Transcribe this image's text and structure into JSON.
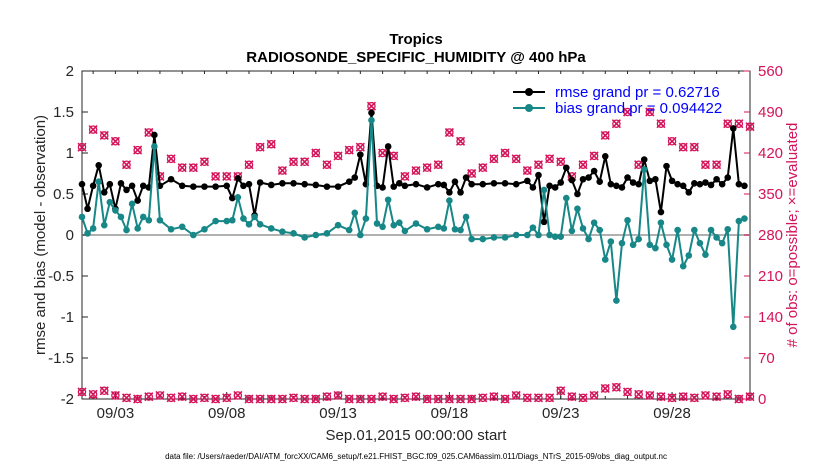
{
  "chart_data": {
    "type": "line",
    "title": "Tropics",
    "subtitle": "RADIOSONDE_SPECIFIC_HUMIDITY @ 400 hPa",
    "xlabel": "Sep.01,2015 00:00:00 start",
    "ylabel": "rmse and bias (model - observation)",
    "ylabel_right": "# of obs: o=possible; ×=evaluated",
    "footnote": "data file: /Users/raeder/DAI/ATM_forcXX/CAM6_setup/f.e21.FHIST_BGC.f09_025.CAM6assim.011/Diags_NTrS_2015-09/obs_diag_output.nc",
    "xlim": [
      1.5,
      31.5
    ],
    "ylim": [
      -2,
      2
    ],
    "ylim_right": [
      0,
      560
    ],
    "xticks": [
      3,
      8,
      13,
      18,
      23,
      28
    ],
    "xtick_labels": [
      "09/03",
      "09/08",
      "09/13",
      "09/18",
      "09/23",
      "09/28"
    ],
    "yticks": [
      -2,
      -1.5,
      -1,
      -0.5,
      0,
      0.5,
      1,
      1.5,
      2
    ],
    "ytick_labels": [
      "-2",
      "-1.5",
      "-1",
      "-0.5",
      "0",
      "0.5",
      "1",
      "1.5",
      "2"
    ],
    "yticks_right": [
      0,
      70,
      140,
      210,
      280,
      350,
      420,
      490,
      560
    ],
    "ytick_labels_right": [
      "0",
      "70",
      "140",
      "210",
      "280",
      "350",
      "420",
      "490",
      "560"
    ],
    "x": [
      1.5,
      1.75,
      2.0,
      2.25,
      2.5,
      2.75,
      3.0,
      3.25,
      3.5,
      3.75,
      4.0,
      4.25,
      4.5,
      4.75,
      5.0,
      5.5,
      6.0,
      6.5,
      7.0,
      7.5,
      8.0,
      8.25,
      8.5,
      8.75,
      9.0,
      9.25,
      9.5,
      10.0,
      10.5,
      11.0,
      11.5,
      12.0,
      12.5,
      13.0,
      13.5,
      13.75,
      14.0,
      14.25,
      14.5,
      14.75,
      15.0,
      15.25,
      15.5,
      15.75,
      16.0,
      16.5,
      17.0,
      17.5,
      17.75,
      18.0,
      18.25,
      18.5,
      18.75,
      19.0,
      19.5,
      20.0,
      20.5,
      21.0,
      21.5,
      21.75,
      22.0,
      22.25,
      22.5,
      22.75,
      23.0,
      23.25,
      23.5,
      23.75,
      24.0,
      24.25,
      24.5,
      24.75,
      25.0,
      25.25,
      25.5,
      25.75,
      26.0,
      26.25,
      26.5,
      26.75,
      27.0,
      27.25,
      27.5,
      27.75,
      28.0,
      28.25,
      28.5,
      28.75,
      29.0,
      29.25,
      29.5,
      29.75,
      30.0,
      30.25,
      30.5,
      30.75,
      31.0,
      31.25
    ],
    "series": [
      {
        "name": "rmse grand pr = 0.62716",
        "color": "#000000",
        "values": [
          0.62,
          0.32,
          0.6,
          0.85,
          0.52,
          0.62,
          0.32,
          0.63,
          0.55,
          0.6,
          0.42,
          0.6,
          0.58,
          1.22,
          0.6,
          0.68,
          0.6,
          0.59,
          0.59,
          0.59,
          0.6,
          0.45,
          0.69,
          0.6,
          0.62,
          0.24,
          0.64,
          0.61,
          0.63,
          0.63,
          0.62,
          0.61,
          0.59,
          0.59,
          0.65,
          0.7,
          0.98,
          0.62,
          1.49,
          0.6,
          0.58,
          1.08,
          0.59,
          0.63,
          0.6,
          0.62,
          0.58,
          0.62,
          0.61,
          0.52,
          0.65,
          0.52,
          0.7,
          0.62,
          0.62,
          0.63,
          0.63,
          0.62,
          0.66,
          0.58,
          0.73,
          0.16,
          0.6,
          0.58,
          0.64,
          0.82,
          0.67,
          0.5,
          0.68,
          0.7,
          0.78,
          0.65,
          0.96,
          0.62,
          0.6,
          0.58,
          0.7,
          0.64,
          0.62,
          0.92,
          0.66,
          0.68,
          0.28,
          0.84,
          0.66,
          0.62,
          0.6,
          0.52,
          0.63,
          0.62,
          0.64,
          0.61,
          0.68,
          0.62,
          0.7,
          1.3,
          0.62,
          0.6
        ]
      },
      {
        "name": "bias grand pr = 0.094422",
        "color": "#178787",
        "values": [
          0.22,
          0.02,
          0.08,
          0.65,
          0.12,
          0.4,
          0.3,
          0.22,
          0.06,
          0.38,
          0.08,
          0.22,
          0.18,
          1.08,
          0.18,
          0.07,
          0.1,
          0.0,
          0.07,
          0.17,
          0.17,
          0.18,
          0.46,
          0.2,
          0.13,
          0.22,
          0.13,
          0.08,
          0.04,
          0.02,
          -0.03,
          0.0,
          0.02,
          0.12,
          0.06,
          0.27,
          0.0,
          0.2,
          1.4,
          0.14,
          0.1,
          0.43,
          0.12,
          0.15,
          0.05,
          0.14,
          0.07,
          0.1,
          0.08,
          0.42,
          0.07,
          0.06,
          0.22,
          -0.05,
          -0.05,
          -0.03,
          -0.03,
          0.0,
          0.0,
          0.09,
          0.0,
          0.55,
          0.0,
          -0.02,
          -0.02,
          0.45,
          0.05,
          0.32,
          0.08,
          -0.05,
          0.15,
          0.06,
          -0.3,
          -0.08,
          -0.8,
          -0.1,
          0.18,
          -0.12,
          -0.05,
          0.8,
          -0.12,
          -0.16,
          0.15,
          -0.12,
          -0.3,
          0.06,
          -0.38,
          -0.25,
          0.06,
          -0.1,
          -0.24,
          0.06,
          -0.03,
          -0.1,
          0.07,
          -1.12,
          0.17,
          0.2
        ]
      }
    ],
    "obs_x": [
      1.5,
      2.0,
      2.5,
      3.0,
      3.5,
      4.0,
      4.5,
      5.0,
      5.5,
      6.0,
      6.5,
      7.0,
      7.5,
      8.0,
      8.5,
      9.0,
      9.5,
      10.0,
      10.5,
      11.0,
      11.5,
      12.0,
      12.5,
      13.0,
      13.5,
      14.0,
      14.5,
      15.0,
      15.5,
      16.0,
      16.5,
      17.0,
      17.5,
      18.0,
      18.5,
      19.0,
      19.5,
      20.0,
      20.5,
      21.0,
      21.5,
      22.0,
      22.5,
      23.0,
      23.5,
      24.0,
      24.5,
      25.0,
      25.5,
      26.0,
      26.5,
      27.0,
      27.5,
      28.0,
      28.5,
      29.0,
      29.5,
      30.0,
      30.5,
      31.0,
      31.5
    ],
    "obs_possible": [
      430,
      460,
      450,
      440,
      400,
      425,
      455,
      380,
      410,
      395,
      395,
      405,
      380,
      380,
      380,
      400,
      430,
      435,
      390,
      405,
      405,
      420,
      400,
      415,
      425,
      430,
      500,
      420,
      415,
      380,
      390,
      395,
      400,
      455,
      440,
      385,
      395,
      410,
      420,
      410,
      390,
      400,
      410,
      405,
      380,
      400,
      415,
      450,
      470,
      490,
      400,
      490,
      470,
      440,
      430,
      430,
      400,
      400,
      470,
      470,
      465
    ],
    "obs_evaluated": [
      430,
      460,
      450,
      440,
      400,
      425,
      455,
      380,
      410,
      395,
      395,
      405,
      380,
      380,
      380,
      400,
      430,
      435,
      390,
      405,
      405,
      420,
      400,
      415,
      425,
      430,
      500,
      420,
      415,
      380,
      390,
      395,
      400,
      455,
      440,
      385,
      395,
      410,
      420,
      410,
      390,
      400,
      410,
      405,
      380,
      400,
      415,
      450,
      470,
      490,
      400,
      490,
      470,
      440,
      430,
      430,
      400,
      400,
      470,
      470,
      465
    ],
    "obs_low": [
      12,
      8,
      14,
      6,
      2,
      0,
      4,
      6,
      2,
      4,
      0,
      2,
      0,
      2,
      6,
      0,
      0,
      0,
      0,
      2,
      0,
      0,
      4,
      6,
      0,
      0,
      0,
      4,
      0,
      2,
      4,
      0,
      0,
      0,
      0,
      0,
      2,
      4,
      0,
      6,
      2,
      2,
      2,
      14,
      4,
      2,
      6,
      18,
      20,
      12,
      8,
      6,
      4,
      2,
      4,
      2,
      6,
      4,
      8,
      0,
      4
    ],
    "gray_zero_line": true,
    "legend_position": "top-right",
    "colors": {
      "rmse": "#000000",
      "bias": "#178787",
      "obs": "#d4145a",
      "zero": "#b0b0b0"
    }
  }
}
